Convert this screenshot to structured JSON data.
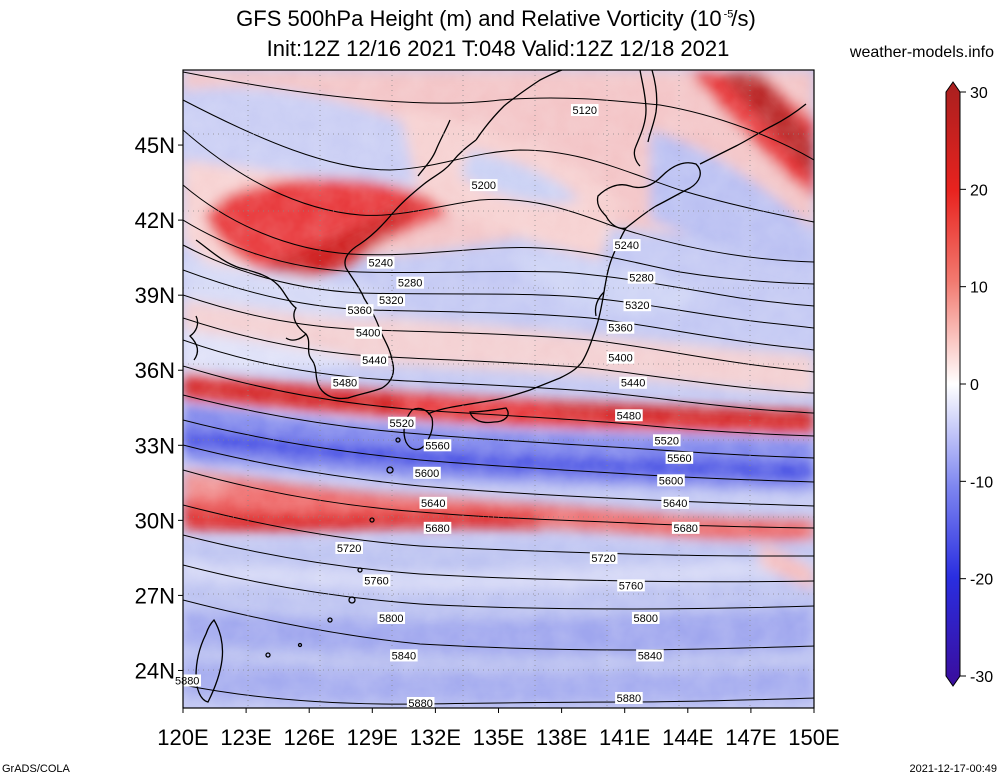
{
  "title": {
    "line1_prefix": "GFS 500hPa Height (m) and Relative Vorticity (10",
    "line1_exp": "-5",
    "line1_suffix": "/s)",
    "line2": "Init:12Z 12/16 2021 T:048 Valid:12Z 12/18 2021"
  },
  "source_site": "weather-models.info",
  "footer": {
    "left": "GrADS/COLA",
    "right": "2021-12-17-00:49"
  },
  "map": {
    "lon_range": [
      120,
      150
    ],
    "lat_range": [
      22.5,
      48
    ],
    "lon_ticks": [
      "120E",
      "123E",
      "126E",
      "129E",
      "132E",
      "135E",
      "138E",
      "141E",
      "144E",
      "147E",
      "150E"
    ],
    "lat_ticks": [
      "24N",
      "27N",
      "30N",
      "33N",
      "36N",
      "39N",
      "42N",
      "45N"
    ],
    "contour_labels": [
      {
        "text": "5120",
        "lon": 139.1,
        "lat": 46.4
      },
      {
        "text": "5200",
        "lon": 134.3,
        "lat": 43.4
      },
      {
        "text": "5240",
        "lon": 129.4,
        "lat": 40.3
      },
      {
        "text": "5240",
        "lon": 141.1,
        "lat": 41.0
      },
      {
        "text": "5280",
        "lon": 130.8,
        "lat": 39.5
      },
      {
        "text": "5280",
        "lon": 141.8,
        "lat": 39.7
      },
      {
        "text": "5320",
        "lon": 129.9,
        "lat": 38.8
      },
      {
        "text": "5320",
        "lon": 141.6,
        "lat": 38.6
      },
      {
        "text": "5360",
        "lon": 128.4,
        "lat": 38.4
      },
      {
        "text": "5360",
        "lon": 140.8,
        "lat": 37.7
      },
      {
        "text": "5400",
        "lon": 128.8,
        "lat": 37.5
      },
      {
        "text": "5400",
        "lon": 140.8,
        "lat": 36.5
      },
      {
        "text": "5440",
        "lon": 129.1,
        "lat": 36.4
      },
      {
        "text": "5440",
        "lon": 141.4,
        "lat": 35.5
      },
      {
        "text": "5480",
        "lon": 127.7,
        "lat": 35.5
      },
      {
        "text": "5480",
        "lon": 141.2,
        "lat": 34.2
      },
      {
        "text": "5520",
        "lon": 130.4,
        "lat": 33.9
      },
      {
        "text": "5520",
        "lon": 143.0,
        "lat": 33.2
      },
      {
        "text": "5560",
        "lon": 132.1,
        "lat": 33.0
      },
      {
        "text": "5560",
        "lon": 143.6,
        "lat": 32.5
      },
      {
        "text": "5600",
        "lon": 131.6,
        "lat": 31.9
      },
      {
        "text": "5600",
        "lon": 143.2,
        "lat": 31.6
      },
      {
        "text": "5640",
        "lon": 131.9,
        "lat": 30.7
      },
      {
        "text": "5640",
        "lon": 143.4,
        "lat": 30.7
      },
      {
        "text": "5680",
        "lon": 132.1,
        "lat": 29.7
      },
      {
        "text": "5680",
        "lon": 143.9,
        "lat": 29.7
      },
      {
        "text": "5720",
        "lon": 127.9,
        "lat": 28.9
      },
      {
        "text": "5720",
        "lon": 140.0,
        "lat": 28.5
      },
      {
        "text": "5760",
        "lon": 129.2,
        "lat": 27.6
      },
      {
        "text": "5760",
        "lon": 141.3,
        "lat": 27.4
      },
      {
        "text": "5800",
        "lon": 129.9,
        "lat": 26.1
      },
      {
        "text": "5800",
        "lon": 142.0,
        "lat": 26.1
      },
      {
        "text": "5840",
        "lon": 130.5,
        "lat": 24.6
      },
      {
        "text": "5840",
        "lon": 142.2,
        "lat": 24.6
      },
      {
        "text": "5880",
        "lon": 120.2,
        "lat": 23.6
      },
      {
        "text": "5880",
        "lon": 131.3,
        "lat": 22.7
      },
      {
        "text": "5880",
        "lon": 141.2,
        "lat": 22.9
      }
    ]
  },
  "colorbar": {
    "ticks": [
      "30",
      "20",
      "10",
      "0",
      "-10",
      "-20",
      "-30"
    ],
    "max_color": "#a81f1f",
    "mid_color": "#ffffff",
    "min_color": "#3a0d9c"
  }
}
